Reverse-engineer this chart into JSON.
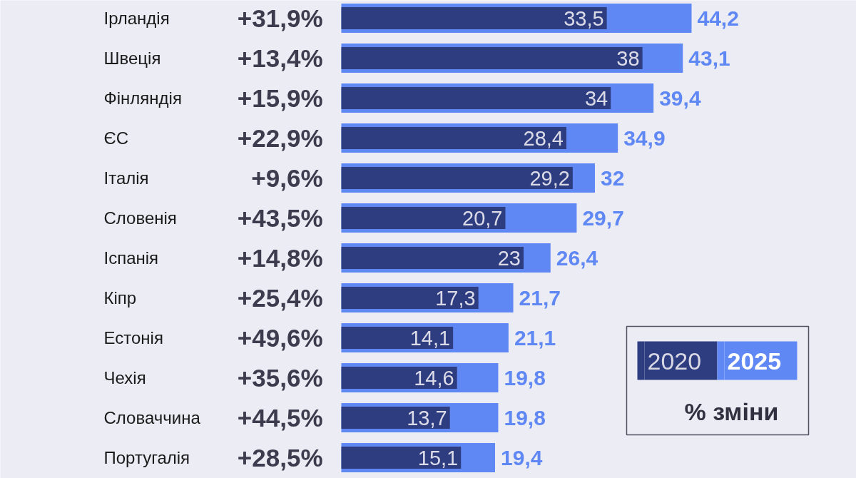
{
  "chart_data": {
    "type": "bar",
    "orientation": "horizontal",
    "categories": [
      "Ірландія",
      "Швеція",
      "Фінляндія",
      "ЄС",
      "Італія",
      "Словенія",
      "Іспанія",
      "Кіпр",
      "Естонія",
      "Чехія",
      "Словаччина",
      "Португалія"
    ],
    "series": [
      {
        "name": "2020",
        "color": "#2e3c80",
        "values": [
          33.5,
          38,
          34,
          28.4,
          29.2,
          20.7,
          23,
          17.3,
          14.1,
          14.6,
          13.7,
          15.1
        ],
        "value_labels": [
          "33,5",
          "38",
          "34",
          "28,4",
          "29,2",
          "20,7",
          "23",
          "17,3",
          "14,1",
          "14,6",
          "13,7",
          "15,1"
        ]
      },
      {
        "name": "2025",
        "color": "#6088f5",
        "values": [
          44.2,
          43.1,
          39.4,
          34.9,
          32,
          29.7,
          26.4,
          21.7,
          21.1,
          19.8,
          19.8,
          19.4
        ],
        "value_labels": [
          "44,2",
          "43,1",
          "39,4",
          "34,9",
          "32",
          "29,7",
          "26,4",
          "21,7",
          "21,1",
          "19,8",
          "19,8",
          "19,4"
        ]
      }
    ],
    "legend": "bottom right",
    "legend_title": "% зміни",
    "tick_labels": "y",
    "annotations": [
      "+31,9%",
      "+13,4%",
      "+15,9%",
      "+22,9%",
      "+9,6%",
      "+43,5%",
      "+14,8%",
      "+25,4%",
      "+49,6%",
      "+35,6%",
      "+44,5%",
      "+28,5%"
    ]
  }
}
